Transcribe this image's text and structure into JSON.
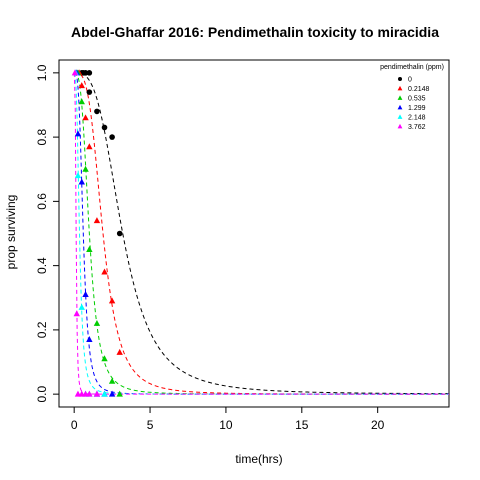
{
  "chart_data": {
    "type": "scatter",
    "title": "Abdel-Ghaffar 2016: Pendimethalin toxicity to miracidia",
    "xlabel": "time(hrs)",
    "ylabel": "prop surviving",
    "xlim": [
      -1,
      24.7
    ],
    "ylim": [
      -0.04,
      1.04
    ],
    "x_ticks": [
      0,
      5,
      10,
      15,
      20
    ],
    "y_ticks": [
      0.0,
      0.2,
      0.4,
      0.6,
      0.8,
      1.0
    ],
    "x_tick_labels": [
      "0",
      "5",
      "10",
      "15",
      "20"
    ],
    "y_tick_labels": [
      "0.0",
      "0.2",
      "0.4",
      "0.6",
      "0.8",
      "1.0"
    ],
    "grid": false,
    "legend": {
      "title": "pendimethalin (ppm)",
      "placement": "top-right",
      "entries": [
        "0",
        "0.2148",
        "0.535",
        "1.299",
        "2.148",
        "3.762"
      ]
    },
    "series": [
      {
        "name": "0",
        "color": "#000000",
        "marker": "circle",
        "points": [
          [
            0.5,
            1.0
          ],
          [
            0.6,
            1.0
          ],
          [
            0.75,
            1.0
          ],
          [
            1.0,
            1.0
          ],
          [
            1.0,
            0.94
          ],
          [
            1.5,
            0.88
          ],
          [
            2.0,
            0.83
          ],
          [
            2.5,
            0.8
          ],
          [
            3.0,
            0.5
          ]
        ],
        "fit": {
          "a": 3.2,
          "b": 3.2
        }
      },
      {
        "name": "0.2148",
        "color": "#ff0000",
        "marker": "triangle",
        "points": [
          [
            0.33,
            1.0
          ],
          [
            0.5,
            0.96
          ],
          [
            0.75,
            0.86
          ],
          [
            1.0,
            0.77
          ],
          [
            1.5,
            0.54
          ],
          [
            2.0,
            0.38
          ],
          [
            2.5,
            0.29
          ],
          [
            3.0,
            0.13
          ]
        ],
        "fit": {
          "a": 1.9,
          "b": 3.5
        }
      },
      {
        "name": "0.535",
        "color": "#00cd00",
        "marker": "triangle",
        "points": [
          [
            0.25,
            1.0
          ],
          [
            0.5,
            0.91
          ],
          [
            0.75,
            0.7
          ],
          [
            1.0,
            0.45
          ],
          [
            1.5,
            0.22
          ],
          [
            2.0,
            0.11
          ],
          [
            2.5,
            0.04
          ],
          [
            3.0,
            0.0
          ]
        ],
        "fit": {
          "a": 1.0,
          "b": 3.2
        }
      },
      {
        "name": "1.299",
        "color": "#0000ff",
        "marker": "triangle",
        "points": [
          [
            0.17,
            1.0
          ],
          [
            0.25,
            0.81
          ],
          [
            0.5,
            0.66
          ],
          [
            0.75,
            0.31
          ],
          [
            1.0,
            0.17
          ],
          [
            1.5,
            0.0
          ],
          [
            2.0,
            0.0
          ],
          [
            2.5,
            0.0
          ]
        ],
        "fit": {
          "a": 0.6,
          "b": 3.5
        }
      },
      {
        "name": "2.148",
        "color": "#00ffff",
        "marker": "triangle",
        "points": [
          [
            0.1,
            1.0
          ],
          [
            0.25,
            0.68
          ],
          [
            0.5,
            0.27
          ],
          [
            0.75,
            0.0
          ],
          [
            1.0,
            0.0
          ],
          [
            1.5,
            0.0
          ],
          [
            2.0,
            0.0
          ]
        ],
        "fit": {
          "a": 0.35,
          "b": 3.0
        }
      },
      {
        "name": "3.762",
        "color": "#ff00ff",
        "marker": "triangle",
        "points": [
          [
            0.05,
            1.0
          ],
          [
            0.17,
            0.25
          ],
          [
            0.25,
            0.0
          ],
          [
            0.5,
            0.0
          ],
          [
            0.75,
            0.0
          ],
          [
            1.0,
            0.0
          ],
          [
            1.5,
            0.0
          ]
        ],
        "fit": {
          "a": 0.13,
          "b": 3.5
        }
      }
    ]
  }
}
